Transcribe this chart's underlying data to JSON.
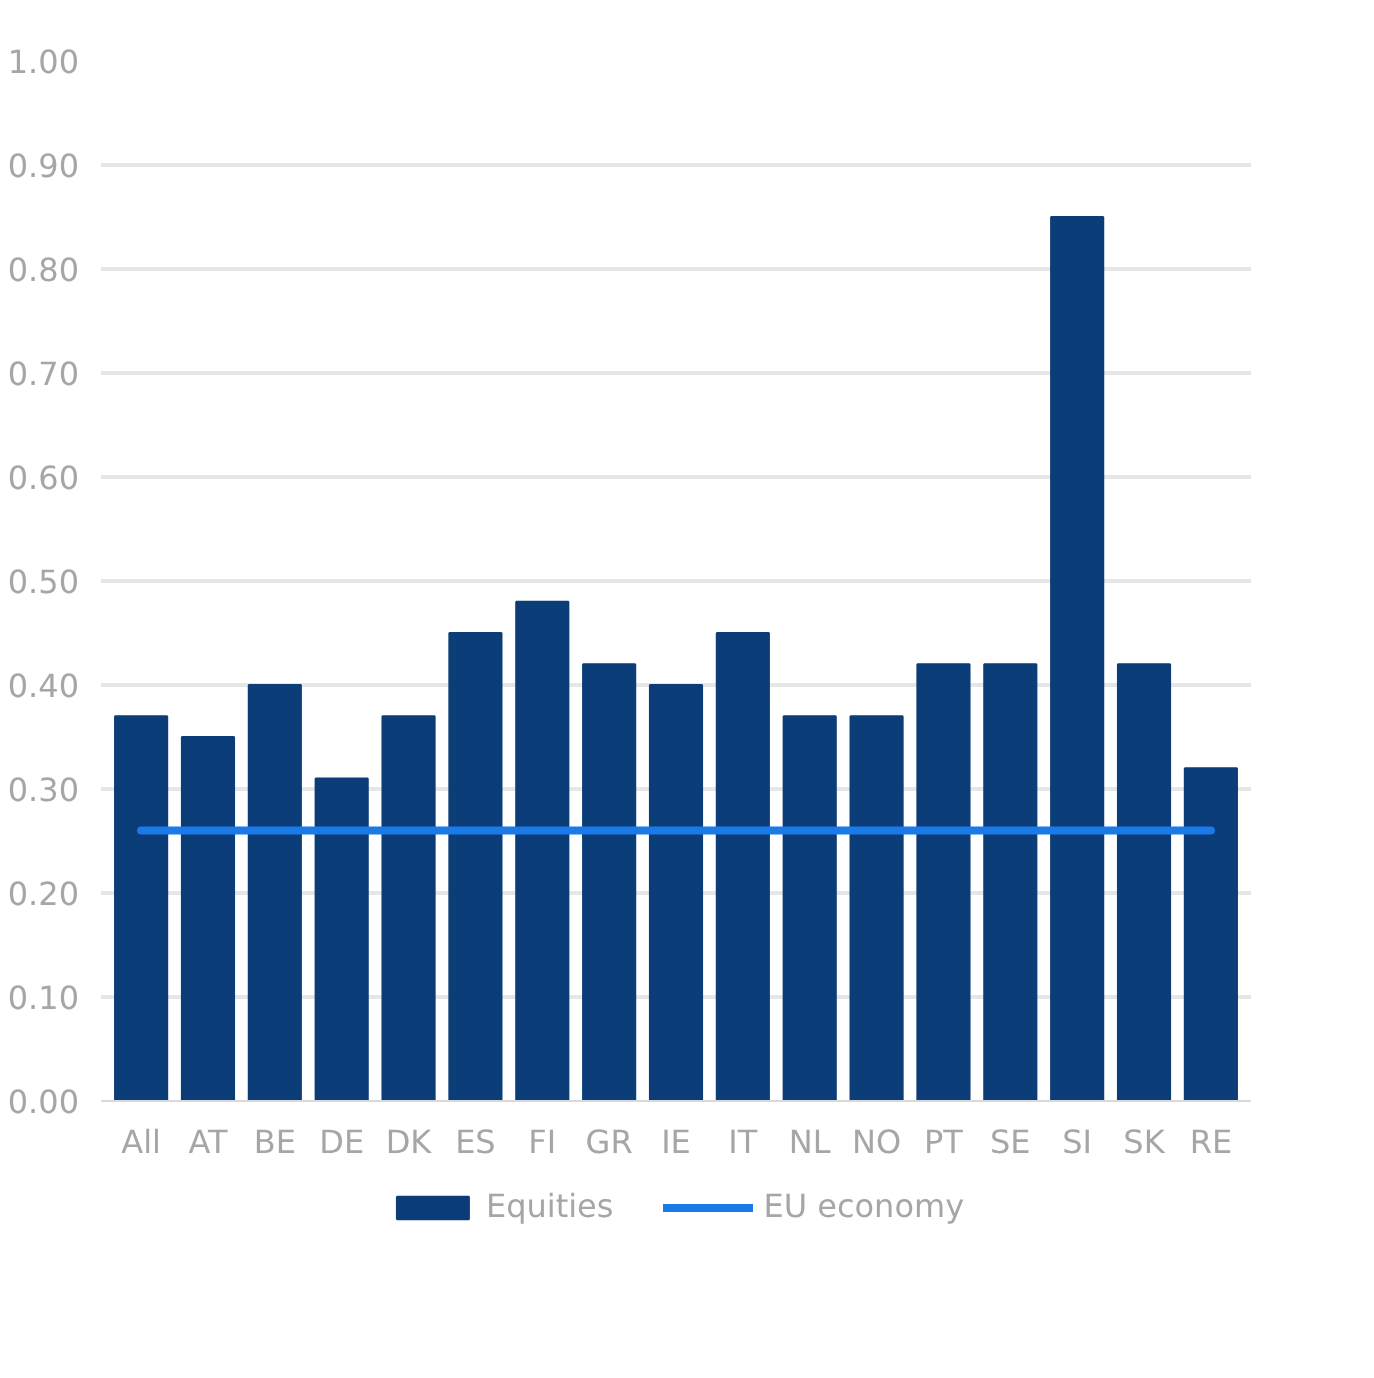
{
  "chart_data": {
    "type": "bar",
    "categories": [
      "All",
      "AT",
      "BE",
      "DE",
      "DK",
      "ES",
      "FI",
      "GR",
      "IE",
      "IT",
      "NL",
      "NO",
      "PT",
      "SE",
      "SI",
      "SK",
      "RE"
    ],
    "series": [
      {
        "name": "Equities",
        "color": "#0b3d78",
        "values": [
          0.37,
          0.35,
          0.4,
          0.31,
          0.37,
          0.45,
          0.48,
          0.42,
          0.4,
          0.45,
          0.37,
          0.37,
          0.42,
          0.42,
          0.85,
          0.42,
          0.32
        ]
      },
      {
        "name": "EU economy",
        "type": "line",
        "color": "#1a7ae8",
        "values": [
          0.26,
          0.26,
          0.26,
          0.26,
          0.26,
          0.26,
          0.26,
          0.26,
          0.26,
          0.26,
          0.26,
          0.26,
          0.26,
          0.26,
          0.26,
          0.26,
          0.26
        ]
      }
    ],
    "ylim": [
      0,
      1.0
    ],
    "yticks": [
      {
        "value": 0,
        "label": "0.00"
      },
      {
        "value": 0.1,
        "label": "0.10"
      },
      {
        "value": 0.2,
        "label": "0.20"
      },
      {
        "value": 0.3,
        "label": "0.30"
      },
      {
        "value": 0.4,
        "label": "0.40"
      },
      {
        "value": 0.5,
        "label": "0.50"
      },
      {
        "value": 0.6,
        "label": "0.60"
      },
      {
        "value": 0.7,
        "label": "0.70"
      },
      {
        "value": 0.8,
        "label": "0.80"
      },
      {
        "value": 0.9,
        "label": "0.90"
      },
      {
        "value": 1.0,
        "label": "1.00"
      }
    ],
    "grid": "y",
    "legend": "bottom"
  }
}
